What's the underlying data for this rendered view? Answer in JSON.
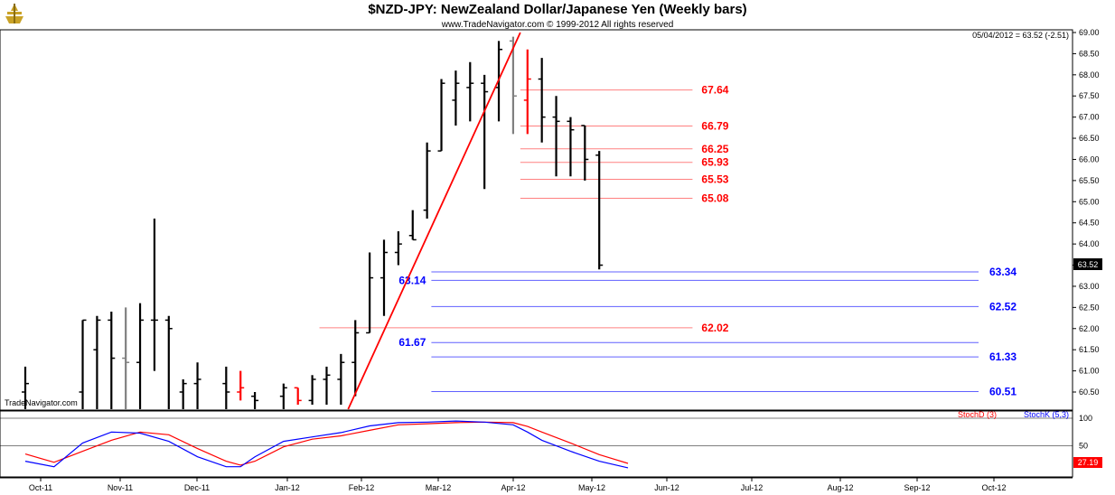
{
  "title": "$NZD-JPY:  NewZealand Dollar/Japanese Yen  (Weekly bars)",
  "subtitle": "www.TradeNavigator.com © 1999-2012 All rights reserved",
  "info": "05/04/2012 = 63.52 (-2.51)",
  "price_box": "63.52",
  "watermark": "TradeNavigator.com",
  "legend": {
    "stoch_d": "StochD (3)",
    "stoch_k": "StochK (5,3)"
  },
  "stoch_box": "27.19",
  "colors": {
    "up": "#000000",
    "red": "#ff0000",
    "blue": "#0000ff",
    "grid": "#000000"
  },
  "chart_data": [
    {
      "type": "ohlc",
      "ylim": [
        60.3,
        69.05
      ],
      "yticks": [
        "69.00",
        "68.50",
        "68.00",
        "67.50",
        "67.00",
        "66.50",
        "66.00",
        "65.50",
        "65.00",
        "64.50",
        "64.00",
        "63.50",
        "63.00",
        "62.50",
        "62.00",
        "61.50",
        "61.00",
        "60.50"
      ],
      "xticks": [
        "Oct-11",
        "Nov-11",
        "Dec-11",
        "Jan-12",
        "Feb-12",
        "Mar-12",
        "Apr-12",
        "May-12",
        "Jun-12",
        "Jul-12",
        "Aug-12",
        "Sep-12",
        "Oct-12"
      ],
      "bars": [
        {
          "w": 0,
          "h": 61.1,
          "l": 60.0,
          "o": 60.5,
          "c": 60.7,
          "color": "black"
        },
        {
          "w": 4,
          "h": 62.2,
          "l": 60.0,
          "o": 60.5,
          "c": 62.2,
          "color": "black"
        },
        {
          "w": 5,
          "h": 62.3,
          "l": 60.0,
          "o": 61.5,
          "c": 62.2,
          "color": "black"
        },
        {
          "w": 6,
          "h": 62.4,
          "l": 60.0,
          "o": 62.2,
          "c": 61.3,
          "color": "black"
        },
        {
          "w": 7,
          "h": 62.5,
          "l": 60.0,
          "o": 61.3,
          "c": 61.2,
          "color": "gray"
        },
        {
          "w": 8,
          "h": 62.6,
          "l": 60.0,
          "o": 61.2,
          "c": 62.2,
          "color": "black"
        },
        {
          "w": 9,
          "h": 64.6,
          "l": 61.0,
          "o": 62.2,
          "c": 62.2,
          "color": "black"
        },
        {
          "w": 10,
          "h": 62.3,
          "l": 60.0,
          "o": 62.2,
          "c": 62.0,
          "color": "black"
        },
        {
          "w": 11,
          "h": 60.8,
          "l": 60.0,
          "o": 60.5,
          "c": 60.7,
          "color": "black"
        },
        {
          "w": 12,
          "h": 61.2,
          "l": 60.0,
          "o": 60.7,
          "c": 60.8,
          "color": "black"
        },
        {
          "w": 14,
          "h": 61.1,
          "l": 60.0,
          "o": 60.7,
          "c": 60.5,
          "color": "black"
        },
        {
          "w": 15,
          "h": 61.0,
          "l": 60.3,
          "o": 60.5,
          "c": 60.6,
          "color": "red"
        },
        {
          "w": 16,
          "h": 60.5,
          "l": 60.0,
          "o": 60.4,
          "c": 60.3,
          "color": "black"
        },
        {
          "w": 18,
          "h": 60.7,
          "l": 60.0,
          "o": 60.4,
          "c": 60.6,
          "color": "black"
        },
        {
          "w": 19,
          "h": 60.6,
          "l": 60.2,
          "o": 60.6,
          "c": 60.3,
          "color": "red"
        },
        {
          "w": 20,
          "h": 60.9,
          "l": 60.2,
          "o": 60.3,
          "c": 60.8,
          "color": "black"
        },
        {
          "w": 21,
          "h": 61.1,
          "l": 60.2,
          "o": 60.8,
          "c": 60.9,
          "color": "black"
        },
        {
          "w": 22,
          "h": 61.4,
          "l": 60.2,
          "o": 60.8,
          "c": 61.2,
          "color": "black"
        },
        {
          "w": 23,
          "h": 62.2,
          "l": 60.4,
          "o": 61.2,
          "c": 61.9,
          "color": "black"
        },
        {
          "w": 24,
          "h": 63.8,
          "l": 61.9,
          "o": 61.9,
          "c": 63.2,
          "color": "black"
        },
        {
          "w": 25,
          "h": 64.1,
          "l": 62.3,
          "o": 63.2,
          "c": 63.8,
          "color": "black"
        },
        {
          "w": 26,
          "h": 64.3,
          "l": 63.5,
          "o": 63.8,
          "c": 64.0,
          "color": "black"
        },
        {
          "w": 27,
          "h": 64.8,
          "l": 64.1,
          "o": 64.2,
          "c": 64.1,
          "color": "black"
        },
        {
          "w": 28,
          "h": 66.4,
          "l": 64.6,
          "o": 64.8,
          "c": 66.2,
          "color": "black"
        },
        {
          "w": 29,
          "h": 67.9,
          "l": 66.2,
          "o": 66.2,
          "c": 67.8,
          "color": "black"
        },
        {
          "w": 30,
          "h": 68.1,
          "l": 66.8,
          "o": 67.4,
          "c": 67.8,
          "color": "black"
        },
        {
          "w": 31,
          "h": 68.3,
          "l": 66.9,
          "o": 67.7,
          "c": 67.8,
          "color": "black"
        },
        {
          "w": 32,
          "h": 68.0,
          "l": 65.3,
          "o": 67.8,
          "c": 67.6,
          "color": "black"
        },
        {
          "w": 33,
          "h": 68.8,
          "l": 66.9,
          "o": 67.7,
          "c": 68.6,
          "color": "black"
        },
        {
          "w": 34,
          "h": 68.9,
          "l": 66.6,
          "o": 68.8,
          "c": 67.5,
          "color": "gray"
        },
        {
          "w": 35,
          "h": 68.6,
          "l": 66.6,
          "o": 67.4,
          "c": 67.9,
          "color": "red"
        },
        {
          "w": 36,
          "h": 68.4,
          "l": 66.4,
          "o": 67.9,
          "c": 67.0,
          "color": "black"
        },
        {
          "w": 37,
          "h": 67.5,
          "l": 65.6,
          "o": 67.0,
          "c": 66.9,
          "color": "black"
        },
        {
          "w": 38,
          "h": 67.0,
          "l": 65.6,
          "o": 66.9,
          "c": 66.7,
          "color": "black"
        },
        {
          "w": 39,
          "h": 66.8,
          "l": 65.5,
          "o": 66.8,
          "c": 66.0,
          "color": "black"
        },
        {
          "w": 40,
          "h": 66.2,
          "l": 63.4,
          "o": 66.1,
          "c": 63.5,
          "color": "black"
        }
      ],
      "trendline": [
        {
          "w": 22.5,
          "v": 60.0
        },
        {
          "w": 34.5,
          "v": 69.0
        }
      ],
      "red_levels": [
        {
          "label": "67.64",
          "v": 67.64,
          "w0": 34.5,
          "w1": 46.5
        },
        {
          "label": "66.79",
          "v": 66.79,
          "w0": 34.5,
          "w1": 46.5
        },
        {
          "label": "66.25",
          "v": 66.25,
          "w0": 34.5,
          "w1": 46.5
        },
        {
          "label": "65.93",
          "v": 65.93,
          "w0": 34.5,
          "w1": 46.5
        },
        {
          "label": "65.53",
          "v": 65.53,
          "w0": 34.5,
          "w1": 46.5
        },
        {
          "label": "65.08",
          "v": 65.08,
          "w0": 34.5,
          "w1": 46.5
        },
        {
          "label": "62.02",
          "v": 62.02,
          "w0": 20.5,
          "w1": 46.5
        }
      ],
      "blue_levels": [
        {
          "label": "63.34",
          "v": 63.34,
          "side": "right"
        },
        {
          "label": "63.14",
          "v": 63.14,
          "side": "left"
        },
        {
          "label": "62.52",
          "v": 62.52,
          "side": "right"
        },
        {
          "label": "61.67",
          "v": 61.67,
          "side": "left"
        },
        {
          "label": "61.33",
          "v": 61.33,
          "side": "right"
        },
        {
          "label": "60.51",
          "v": 60.51,
          "side": "right"
        }
      ]
    },
    {
      "type": "line",
      "ylim": [
        0,
        100
      ],
      "yticks": [
        "100",
        "50"
      ],
      "series": [
        {
          "name": "StochD (3)",
          "color": "#ff0000",
          "points": [
            [
              0,
              35
            ],
            [
              2,
              20
            ],
            [
              4,
              40
            ],
            [
              6,
              60
            ],
            [
              8,
              75
            ],
            [
              10,
              70
            ],
            [
              12,
              45
            ],
            [
              14,
              22
            ],
            [
              15,
              15
            ],
            [
              16,
              22
            ],
            [
              18,
              48
            ],
            [
              20,
              62
            ],
            [
              22,
              68
            ],
            [
              24,
              78
            ],
            [
              26,
              88
            ],
            [
              28,
              90
            ],
            [
              30,
              92
            ],
            [
              32,
              93
            ],
            [
              34,
              92
            ],
            [
              35,
              85
            ],
            [
              36,
              75
            ],
            [
              38,
              55
            ],
            [
              40,
              34
            ],
            [
              42,
              18
            ]
          ]
        },
        {
          "name": "StochK (5,3)",
          "color": "#0000ff",
          "points": [
            [
              0,
              22
            ],
            [
              2,
              12
            ],
            [
              4,
              55
            ],
            [
              6,
              75
            ],
            [
              8,
              73
            ],
            [
              10,
              58
            ],
            [
              12,
              30
            ],
            [
              14,
              12
            ],
            [
              15,
              12
            ],
            [
              16,
              30
            ],
            [
              18,
              58
            ],
            [
              20,
              66
            ],
            [
              22,
              74
            ],
            [
              24,
              86
            ],
            [
              26,
              92
            ],
            [
              28,
              93
            ],
            [
              30,
              95
            ],
            [
              32,
              93
            ],
            [
              34,
              88
            ],
            [
              35,
              75
            ],
            [
              36,
              60
            ],
            [
              38,
              40
            ],
            [
              40,
              22
            ],
            [
              42,
              10
            ]
          ]
        }
      ]
    }
  ]
}
